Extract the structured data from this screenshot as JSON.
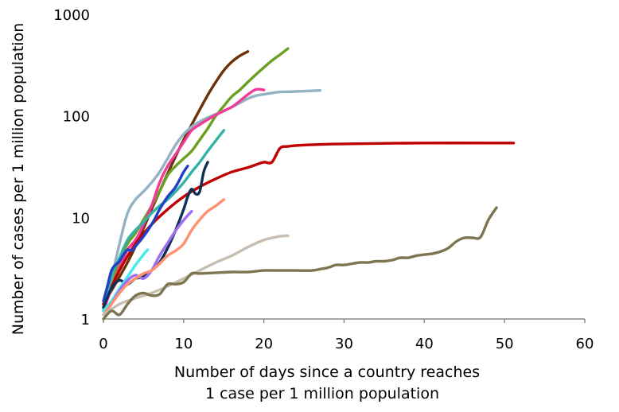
{
  "chart_data": {
    "type": "line",
    "title": "",
    "xlabel_lines": [
      "Number of days since a country reaches",
      "1 case per 1 million population"
    ],
    "ylabel": "Number of cases per 1 million population",
    "xlim": [
      0,
      60
    ],
    "ylim": [
      1,
      1000
    ],
    "yscale": "log",
    "x_ticks": [
      0,
      10,
      20,
      30,
      40,
      50,
      60
    ],
    "y_ticks": [
      1,
      10,
      100,
      1000
    ],
    "grid": false,
    "legend": "none",
    "series": [
      {
        "name": "series-brown",
        "color": "#6b3108",
        "x": [
          0,
          1,
          2,
          3,
          4,
          5,
          6,
          7,
          8,
          9,
          10,
          11,
          12,
          13,
          14,
          15,
          16,
          17,
          18
        ],
        "y": [
          1.4,
          1.9,
          2.6,
          3.6,
          5.2,
          7.8,
          12,
          18,
          27,
          40,
          58,
          82,
          115,
          160,
          215,
          280,
          340,
          390,
          430
        ]
      },
      {
        "name": "series-green",
        "color": "#6aa022",
        "x": [
          0,
          1,
          2,
          3,
          4,
          5,
          6,
          7,
          8,
          9,
          10,
          11,
          12,
          13,
          14,
          15,
          16,
          17,
          18,
          19,
          20,
          21,
          22,
          23
        ],
        "y": [
          1.3,
          2.2,
          3.8,
          5.5,
          7,
          9.5,
          13,
          18,
          26,
          32,
          38,
          45,
          58,
          75,
          100,
          125,
          155,
          180,
          215,
          255,
          300,
          350,
          400,
          460
        ]
      },
      {
        "name": "series-light-blue",
        "color": "#93b3c4",
        "x": [
          0,
          1,
          2,
          3,
          4,
          5,
          6,
          7,
          8,
          9,
          10,
          11,
          12,
          13,
          14,
          15,
          16,
          17,
          18,
          19,
          20,
          21,
          22,
          24,
          27
        ],
        "y": [
          1.2,
          2.5,
          5.5,
          11,
          15,
          18,
          22,
          28,
          38,
          52,
          66,
          78,
          88,
          96,
          104,
          112,
          122,
          134,
          148,
          158,
          163,
          168,
          172,
          174,
          178
        ]
      },
      {
        "name": "series-pink",
        "color": "#f03c96",
        "x": [
          0,
          1,
          2,
          3,
          4,
          5,
          6,
          7,
          8,
          9,
          10,
          11,
          12,
          13,
          14,
          15,
          16,
          17,
          18,
          19,
          20
        ],
        "y": [
          1.2,
          2,
          3.2,
          4.8,
          6,
          8.5,
          13,
          22,
          32,
          42,
          55,
          72,
          82,
          92,
          102,
          112,
          122,
          140,
          162,
          182,
          180
        ]
      },
      {
        "name": "series-red",
        "color": "#c00000",
        "x": [
          0,
          2,
          4,
          6,
          8,
          10,
          12,
          14,
          16,
          18,
          19,
          20,
          21,
          22,
          23,
          24,
          26,
          30,
          40,
          50,
          51
        ],
        "y": [
          1.4,
          3,
          5.5,
          8.5,
          12,
          16,
          20,
          24,
          28,
          31,
          33,
          35,
          35,
          48,
          50,
          51,
          52,
          53,
          54,
          54,
          54
        ]
      },
      {
        "name": "series-teal",
        "color": "#33b3a6",
        "x": [
          0,
          1,
          2,
          3,
          4,
          5,
          6,
          7,
          8,
          9,
          10,
          11,
          12,
          13,
          14,
          15
        ],
        "y": [
          1.2,
          2.6,
          4,
          6,
          7.5,
          9,
          11,
          13,
          15,
          18,
          22,
          28,
          35,
          45,
          57,
          72
        ]
      },
      {
        "name": "series-navy",
        "color": "#0f3057",
        "x": [
          0,
          1,
          2,
          3,
          4,
          5,
          6,
          7,
          8,
          9,
          10,
          10.5,
          11,
          11.5,
          12,
          12.5,
          13
        ],
        "y": [
          1.3,
          2,
          2.4,
          2.2,
          2.5,
          2.6,
          3,
          3.6,
          5,
          7.5,
          12,
          16,
          19,
          17,
          18,
          28,
          35
        ]
      },
      {
        "name": "series-royal-blue",
        "color": "#2040c8",
        "x": [
          0,
          0.5,
          1,
          1.5,
          2,
          2.5,
          3,
          3.5,
          4,
          5,
          6,
          6.5,
          7,
          8,
          9,
          10,
          10.5
        ],
        "y": [
          1.5,
          2.1,
          3,
          3.4,
          3.7,
          4.3,
          4.8,
          4.7,
          5.2,
          6.5,
          8.5,
          10,
          12,
          16,
          20,
          28,
          32
        ]
      },
      {
        "name": "series-cyan",
        "color": "#44eaf0",
        "x": [
          0,
          1,
          2,
          3,
          4,
          5,
          5.5
        ],
        "y": [
          1.2,
          1.5,
          2,
          2.6,
          3.4,
          4.3,
          4.8
        ]
      },
      {
        "name": "series-lavender",
        "color": "#a070f0",
        "x": [
          0,
          1,
          2,
          3,
          4,
          5,
          6,
          7,
          8,
          9,
          10,
          11
        ],
        "y": [
          1.1,
          1.4,
          1.9,
          2.4,
          2.7,
          2.5,
          3,
          4.2,
          5.6,
          7.4,
          9.4,
          11.5
        ]
      },
      {
        "name": "series-salmon",
        "color": "#ff9070",
        "x": [
          0,
          1,
          2,
          3,
          4,
          5,
          6,
          7,
          8,
          9,
          10,
          11,
          12,
          13,
          14,
          15
        ],
        "y": [
          1.1,
          1.4,
          1.8,
          2.2,
          2.5,
          2.8,
          3,
          3.5,
          4.2,
          4.7,
          5.5,
          7.5,
          9.5,
          11.5,
          13,
          15
        ]
      },
      {
        "name": "series-beige",
        "color": "#c7bdb0",
        "x": [
          0,
          2,
          4,
          6,
          8,
          10,
          12,
          14,
          16,
          18,
          20,
          22,
          23
        ],
        "y": [
          1.1,
          1.4,
          1.6,
          1.8,
          2.1,
          2.5,
          3,
          3.6,
          4.2,
          5.1,
          6,
          6.5,
          6.6
        ]
      },
      {
        "name": "series-olive",
        "color": "#7c7550",
        "x": [
          0,
          1,
          2,
          3,
          4,
          5,
          6,
          7,
          8,
          9,
          10,
          11,
          12,
          14,
          16,
          18,
          20,
          22,
          24,
          26,
          27,
          28,
          29,
          30,
          31,
          32,
          33,
          34,
          35,
          36,
          37,
          38,
          39,
          40,
          41,
          42,
          43,
          44,
          45,
          46,
          47,
          48,
          49
        ],
        "y": [
          1,
          1.2,
          1.1,
          1.4,
          1.7,
          1.8,
          1.7,
          1.75,
          2.2,
          2.2,
          2.3,
          2.8,
          2.8,
          2.85,
          2.9,
          2.9,
          3,
          3,
          3,
          3,
          3.1,
          3.2,
          3.4,
          3.4,
          3.5,
          3.6,
          3.6,
          3.7,
          3.7,
          3.8,
          4,
          4,
          4.2,
          4.3,
          4.4,
          4.6,
          5,
          5.8,
          6.3,
          6.3,
          6.4,
          9.5,
          12.5
        ]
      }
    ]
  }
}
